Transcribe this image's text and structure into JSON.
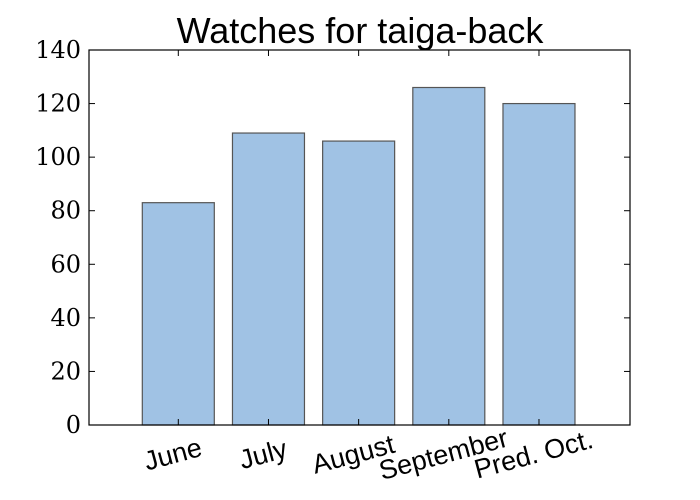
{
  "chart_data": {
    "type": "bar",
    "title": "Watches for taiga-back",
    "xlabel": "",
    "ylabel": "",
    "categories": [
      "June",
      "July",
      "August",
      "September",
      "Pred. Oct."
    ],
    "values": [
      83,
      109,
      106,
      126,
      120
    ],
    "ylim": [
      0,
      140
    ],
    "yticks": [
      "0",
      "20",
      "40",
      "60",
      "80",
      "100",
      "120",
      "140"
    ],
    "grid": false,
    "bar_color": "#a0c2e4",
    "bar_edge_color": "#555555"
  }
}
